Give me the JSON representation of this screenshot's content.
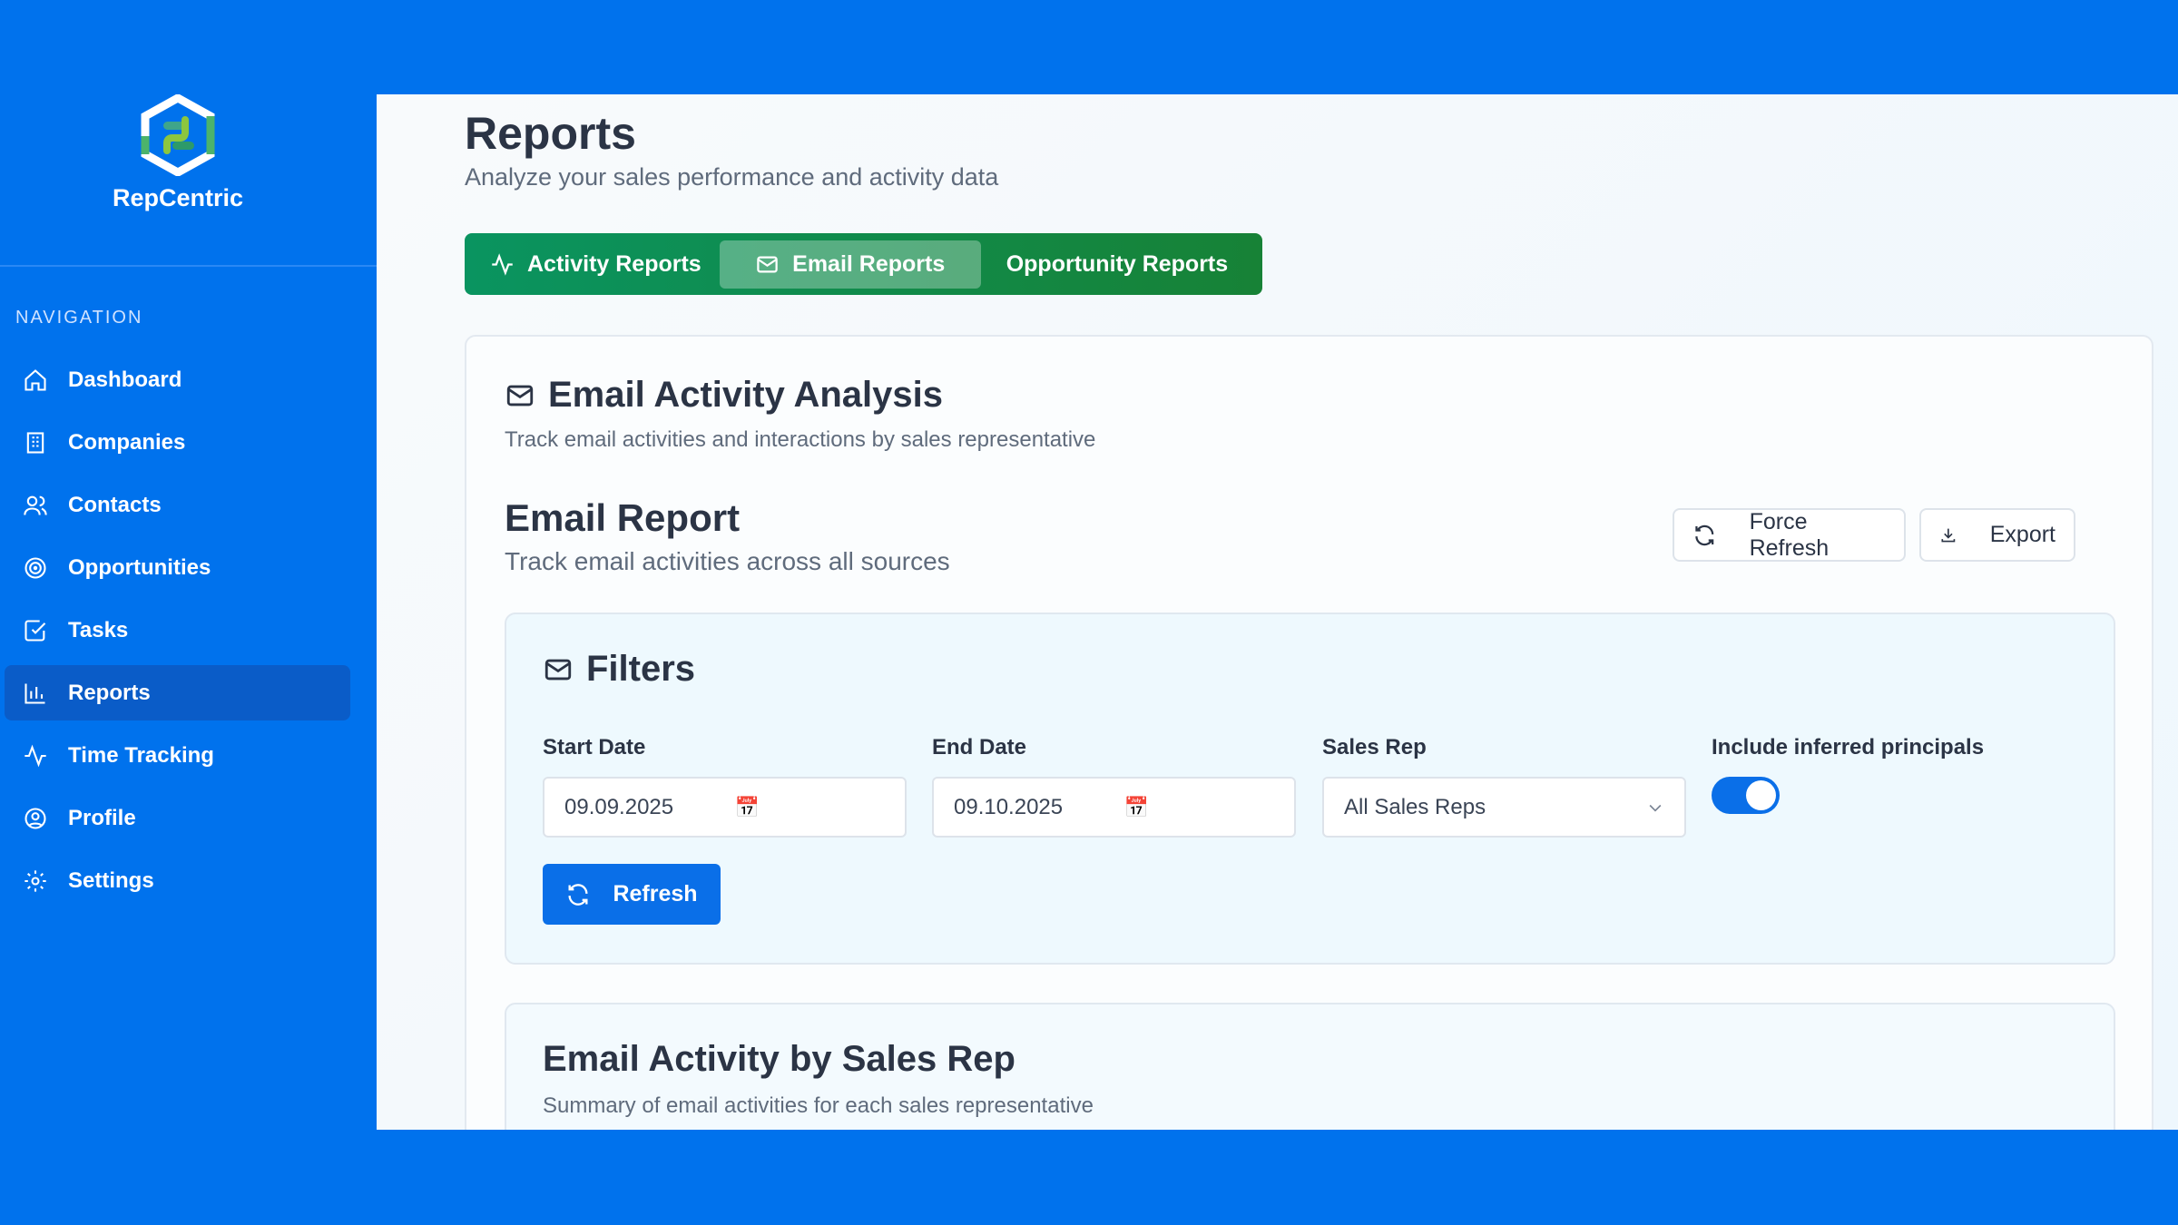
{
  "brand": {
    "name": "RepCentric"
  },
  "sidebar": {
    "section_label": "NAVIGATION",
    "items": [
      {
        "label": "Dashboard",
        "icon": "home-icon"
      },
      {
        "label": "Companies",
        "icon": "building-icon"
      },
      {
        "label": "Contacts",
        "icon": "users-icon"
      },
      {
        "label": "Opportunities",
        "icon": "target-icon"
      },
      {
        "label": "Tasks",
        "icon": "checkbox-icon"
      },
      {
        "label": "Reports",
        "icon": "bar-chart-icon",
        "active": true
      },
      {
        "label": "Time Tracking",
        "icon": "activity-icon"
      },
      {
        "label": "Profile",
        "icon": "user-circle-icon"
      },
      {
        "label": "Settings",
        "icon": "gear-icon"
      }
    ]
  },
  "header": {
    "title": "Reports",
    "subtitle": "Analyze your sales performance and activity data"
  },
  "tabs": [
    {
      "label": "Activity Reports"
    },
    {
      "label": "Email Reports",
      "active": true
    },
    {
      "label": "Opportunity Reports"
    }
  ],
  "analysis": {
    "title": "Email Activity Analysis",
    "subtitle": "Track email activities and interactions by sales representative"
  },
  "report": {
    "title": "Email Report",
    "subtitle": "Track email activities across all sources",
    "force_refresh": "Force Refresh",
    "export": "Export"
  },
  "filters": {
    "title": "Filters",
    "start_label": "Start Date",
    "start_value": "09.09.2025",
    "end_label": "End Date",
    "end_value": "09.10.2025",
    "rep_label": "Sales Rep",
    "rep_value": "All Sales Reps",
    "inferred_label": "Include inferred principals",
    "inferred_on": true,
    "refresh": "Refresh"
  },
  "by_rep": {
    "title": "Email Activity by Sales Rep",
    "subtitle": "Summary of email activities for each sales representative"
  },
  "colors": {
    "brand_blue": "#0072ed",
    "tab_green": "#0a9460",
    "accent": "#0a6fe8"
  }
}
